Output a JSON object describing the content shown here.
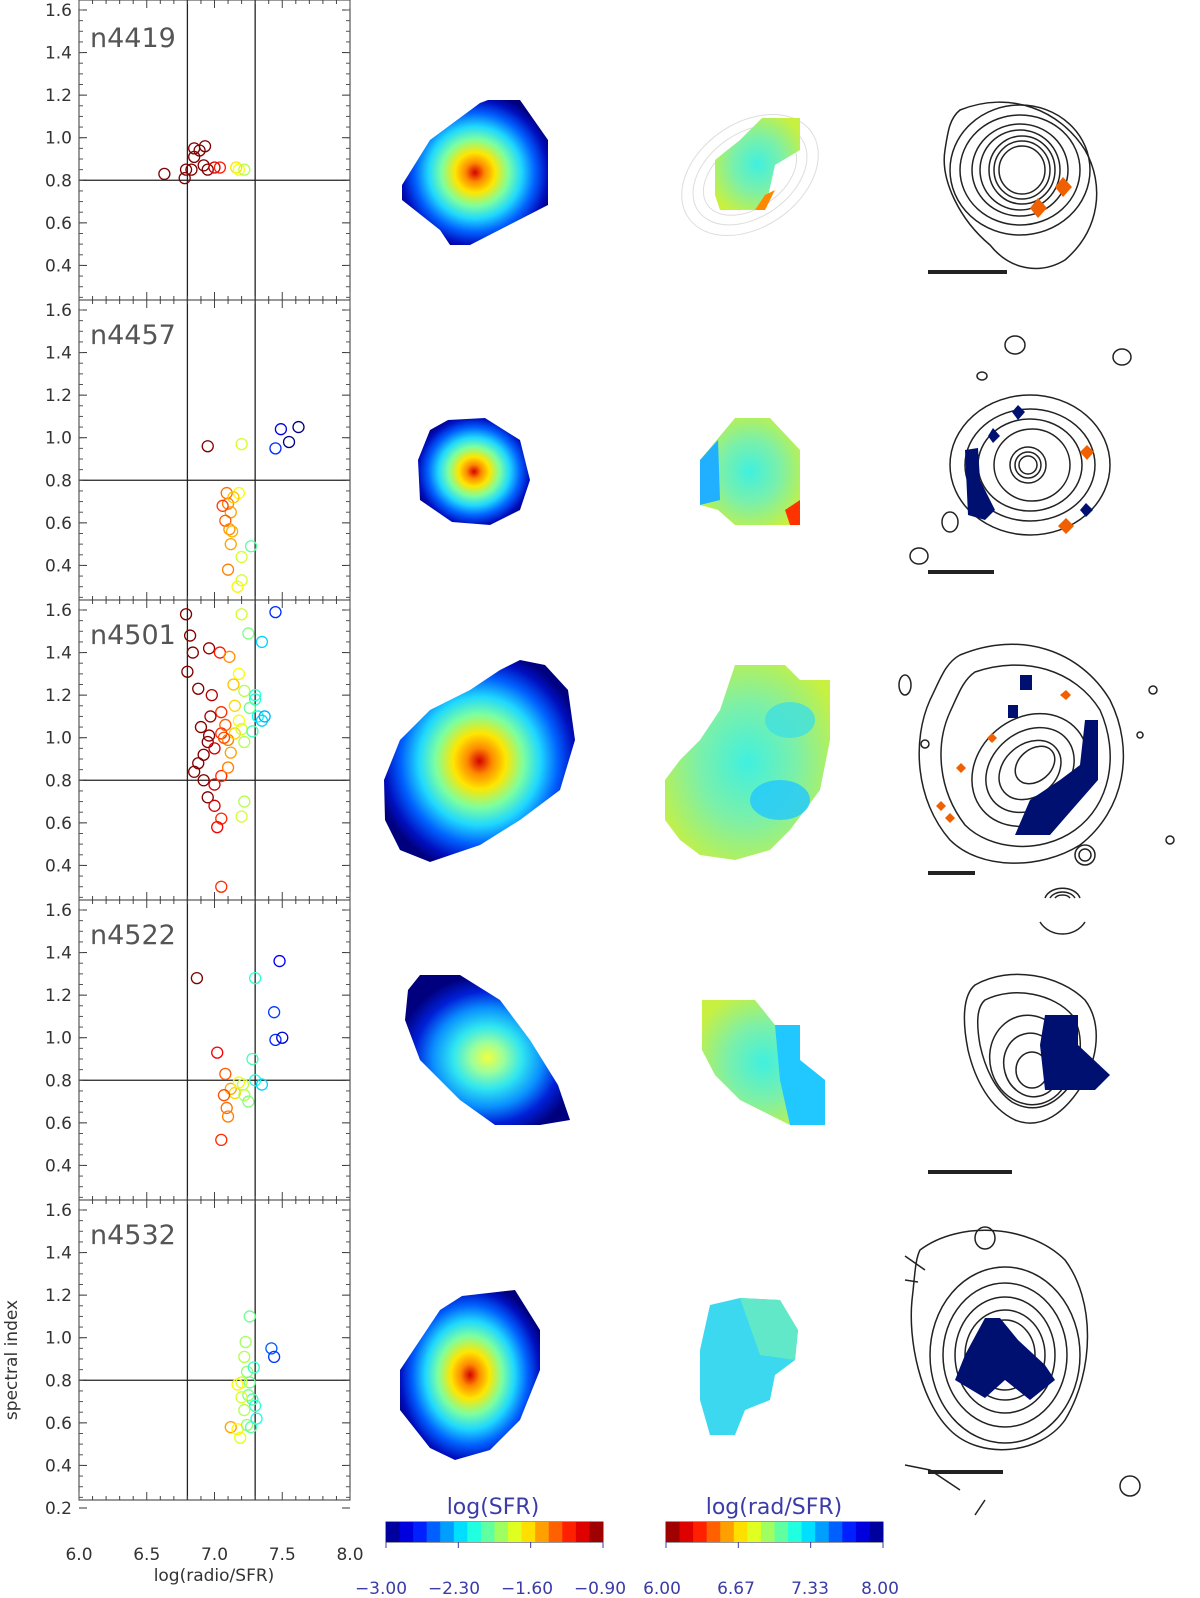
{
  "chart_data": {
    "type": "scatter",
    "xlabel": "log(radio/SFR)",
    "ylabel": "spectral index",
    "xlim": [
      6.0,
      8.0
    ],
    "ylim": [
      0.2,
      1.6
    ],
    "xticks": [
      "6.0",
      "6.5",
      "7.0",
      "7.5",
      "8.0"
    ],
    "yticks_bottom": [
      "0.2",
      "0.4",
      "0.6",
      "0.8",
      "1.0",
      "1.2",
      "1.4",
      "1.6"
    ],
    "yticks": [
      "0.4",
      "0.6",
      "0.8",
      "1.0",
      "1.2",
      "1.4",
      "1.6"
    ],
    "reference_lines": {
      "x": [
        6.8,
        7.3
      ],
      "y": 0.8
    },
    "grid": false,
    "panels": [
      {
        "name": "n4419",
        "points": [
          [
            6.63,
            0.83
          ],
          [
            6.78,
            0.81
          ],
          [
            6.79,
            0.85
          ],
          [
            6.83,
            0.85
          ],
          [
            6.85,
            0.91
          ],
          [
            6.85,
            0.95
          ],
          [
            6.89,
            0.94
          ],
          [
            6.93,
            0.96
          ],
          [
            6.92,
            0.87
          ],
          [
            6.95,
            0.85
          ],
          [
            7.0,
            0.86
          ],
          [
            7.04,
            0.86
          ],
          [
            7.16,
            0.86
          ],
          [
            7.18,
            0.85
          ],
          [
            7.22,
            0.85
          ]
        ]
      },
      {
        "name": "n4457",
        "points": [
          [
            6.95,
            0.96
          ],
          [
            7.2,
            0.97
          ],
          [
            7.45,
            0.95
          ],
          [
            7.49,
            1.04
          ],
          [
            7.55,
            0.98
          ],
          [
            7.62,
            1.05
          ],
          [
            7.09,
            0.74
          ],
          [
            7.1,
            0.69
          ],
          [
            7.12,
            0.65
          ],
          [
            7.08,
            0.61
          ],
          [
            7.11,
            0.57
          ],
          [
            7.13,
            0.56
          ],
          [
            7.18,
            0.74
          ],
          [
            7.12,
            0.5
          ],
          [
            7.2,
            0.44
          ],
          [
            7.27,
            0.49
          ],
          [
            7.1,
            0.38
          ],
          [
            7.2,
            0.33
          ],
          [
            7.17,
            0.3
          ],
          [
            7.06,
            0.68
          ],
          [
            7.14,
            0.72
          ]
        ]
      },
      {
        "name": "n4501",
        "points": [
          [
            6.79,
            1.58
          ],
          [
            6.82,
            1.48
          ],
          [
            6.84,
            1.4
          ],
          [
            6.8,
            1.31
          ],
          [
            6.88,
            1.23
          ],
          [
            6.96,
            1.42
          ],
          [
            7.04,
            1.4
          ],
          [
            7.11,
            1.38
          ],
          [
            7.2,
            1.58
          ],
          [
            7.25,
            1.49
          ],
          [
            7.35,
            1.45
          ],
          [
            7.45,
            1.59
          ],
          [
            7.18,
            1.3
          ],
          [
            7.22,
            1.22
          ],
          [
            7.3,
            1.18
          ],
          [
            7.32,
            1.1
          ],
          [
            7.15,
            1.15
          ],
          [
            7.05,
            1.12
          ],
          [
            6.97,
            1.1
          ],
          [
            6.9,
            1.05
          ],
          [
            6.95,
            0.98
          ],
          [
            7.0,
            0.95
          ],
          [
            7.05,
            1.02
          ],
          [
            7.08,
            1.06
          ],
          [
            7.1,
            0.99
          ],
          [
            7.12,
            0.93
          ],
          [
            7.15,
            1.02
          ],
          [
            7.18,
            1.08
          ],
          [
            7.2,
            1.04
          ],
          [
            7.22,
            0.98
          ],
          [
            7.28,
            1.03
          ],
          [
            7.35,
            1.08
          ],
          [
            7.37,
            1.1
          ],
          [
            6.92,
            0.92
          ],
          [
            6.88,
            0.88
          ],
          [
            6.85,
            0.84
          ],
          [
            6.92,
            0.8
          ],
          [
            7.0,
            0.78
          ],
          [
            7.05,
            0.82
          ],
          [
            7.1,
            0.86
          ],
          [
            6.95,
            0.72
          ],
          [
            7.0,
            0.68
          ],
          [
            7.05,
            0.62
          ],
          [
            7.02,
            0.58
          ],
          [
            7.2,
            0.63
          ],
          [
            7.22,
            0.7
          ],
          [
            7.05,
            0.3
          ],
          [
            7.3,
            1.2
          ],
          [
            6.98,
            1.2
          ],
          [
            7.14,
            1.25
          ],
          [
            7.26,
            1.14
          ],
          [
            6.96,
            1.01
          ],
          [
            7.07,
            1.0
          ]
        ]
      },
      {
        "name": "n4522",
        "points": [
          [
            6.87,
            1.28
          ],
          [
            7.3,
            1.28
          ],
          [
            7.48,
            1.36
          ],
          [
            7.44,
            1.12
          ],
          [
            7.45,
            0.99
          ],
          [
            7.5,
            1.0
          ],
          [
            7.28,
            0.9
          ],
          [
            7.02,
            0.93
          ],
          [
            7.12,
            0.76
          ],
          [
            7.15,
            0.74
          ],
          [
            7.18,
            0.79
          ],
          [
            7.22,
            0.73
          ],
          [
            7.25,
            0.7
          ],
          [
            7.3,
            0.8
          ],
          [
            7.35,
            0.78
          ],
          [
            7.07,
            0.73
          ],
          [
            7.09,
            0.67
          ],
          [
            7.1,
            0.63
          ],
          [
            7.05,
            0.52
          ],
          [
            7.08,
            0.83
          ],
          [
            7.21,
            0.78
          ]
        ]
      },
      {
        "name": "n4532",
        "points": [
          [
            7.26,
            1.1
          ],
          [
            7.23,
            0.98
          ],
          [
            7.42,
            0.95
          ],
          [
            7.44,
            0.91
          ],
          [
            7.22,
            0.91
          ],
          [
            7.24,
            0.84
          ],
          [
            7.26,
            0.79
          ],
          [
            7.29,
            0.86
          ],
          [
            7.2,
            0.79
          ],
          [
            7.17,
            0.78
          ],
          [
            7.25,
            0.73
          ],
          [
            7.28,
            0.71
          ],
          [
            7.3,
            0.68
          ],
          [
            7.2,
            0.72
          ],
          [
            7.12,
            0.58
          ],
          [
            7.17,
            0.57
          ],
          [
            7.24,
            0.59
          ],
          [
            7.27,
            0.58
          ],
          [
            7.31,
            0.62
          ],
          [
            7.19,
            0.53
          ],
          [
            7.22,
            0.66
          ]
        ]
      }
    ],
    "colorbars": [
      {
        "label": "log(SFR)",
        "ticks": [
          "−3.00",
          "−2.30",
          "−1.60",
          "−0.90"
        ],
        "range": [
          -3.0,
          -0.9
        ],
        "scale": "blue-to-red"
      },
      {
        "label": "log(rad/SFR)",
        "ticks": [
          "6.00",
          "6.67",
          "7.33",
          "8.00"
        ],
        "range": [
          6.0,
          8.0
        ],
        "scale": "red-to-blue"
      }
    ]
  }
}
